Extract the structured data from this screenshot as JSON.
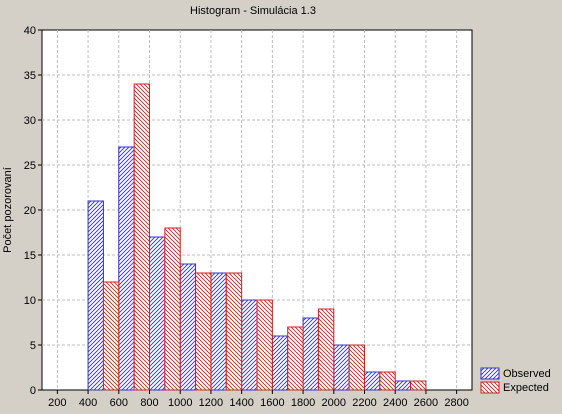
{
  "chart_data": {
    "type": "bar",
    "title": "Histogram - Simulácia 1.3",
    "xlabel": "",
    "ylabel": "Počet pozorovaní",
    "x_ticks": [
      "200",
      "400",
      "600",
      "800",
      "1000",
      "1200",
      "1400",
      "1600",
      "1800",
      "2000",
      "2200",
      "2400",
      "2600",
      "2800"
    ],
    "xlim": [
      100,
      2900
    ],
    "ylim": [
      0,
      40
    ],
    "y_ticks": [
      0,
      5,
      10,
      15,
      20,
      25,
      30,
      35,
      40
    ],
    "bin_centers": [
      500,
      700,
      900,
      1100,
      1300,
      1500,
      1700,
      1900,
      2100,
      2300,
      2500
    ],
    "series": [
      {
        "name": "Observed",
        "color": "#3333cc",
        "values": [
          21,
          27,
          17,
          14,
          13,
          10,
          6,
          8,
          5,
          2,
          1
        ]
      },
      {
        "name": "Expected",
        "color": "#cc2222",
        "values": [
          12,
          34,
          18,
          13,
          13,
          10,
          7,
          9,
          5,
          2,
          1
        ]
      }
    ],
    "grid": true,
    "legend_position": "bottom-right"
  }
}
